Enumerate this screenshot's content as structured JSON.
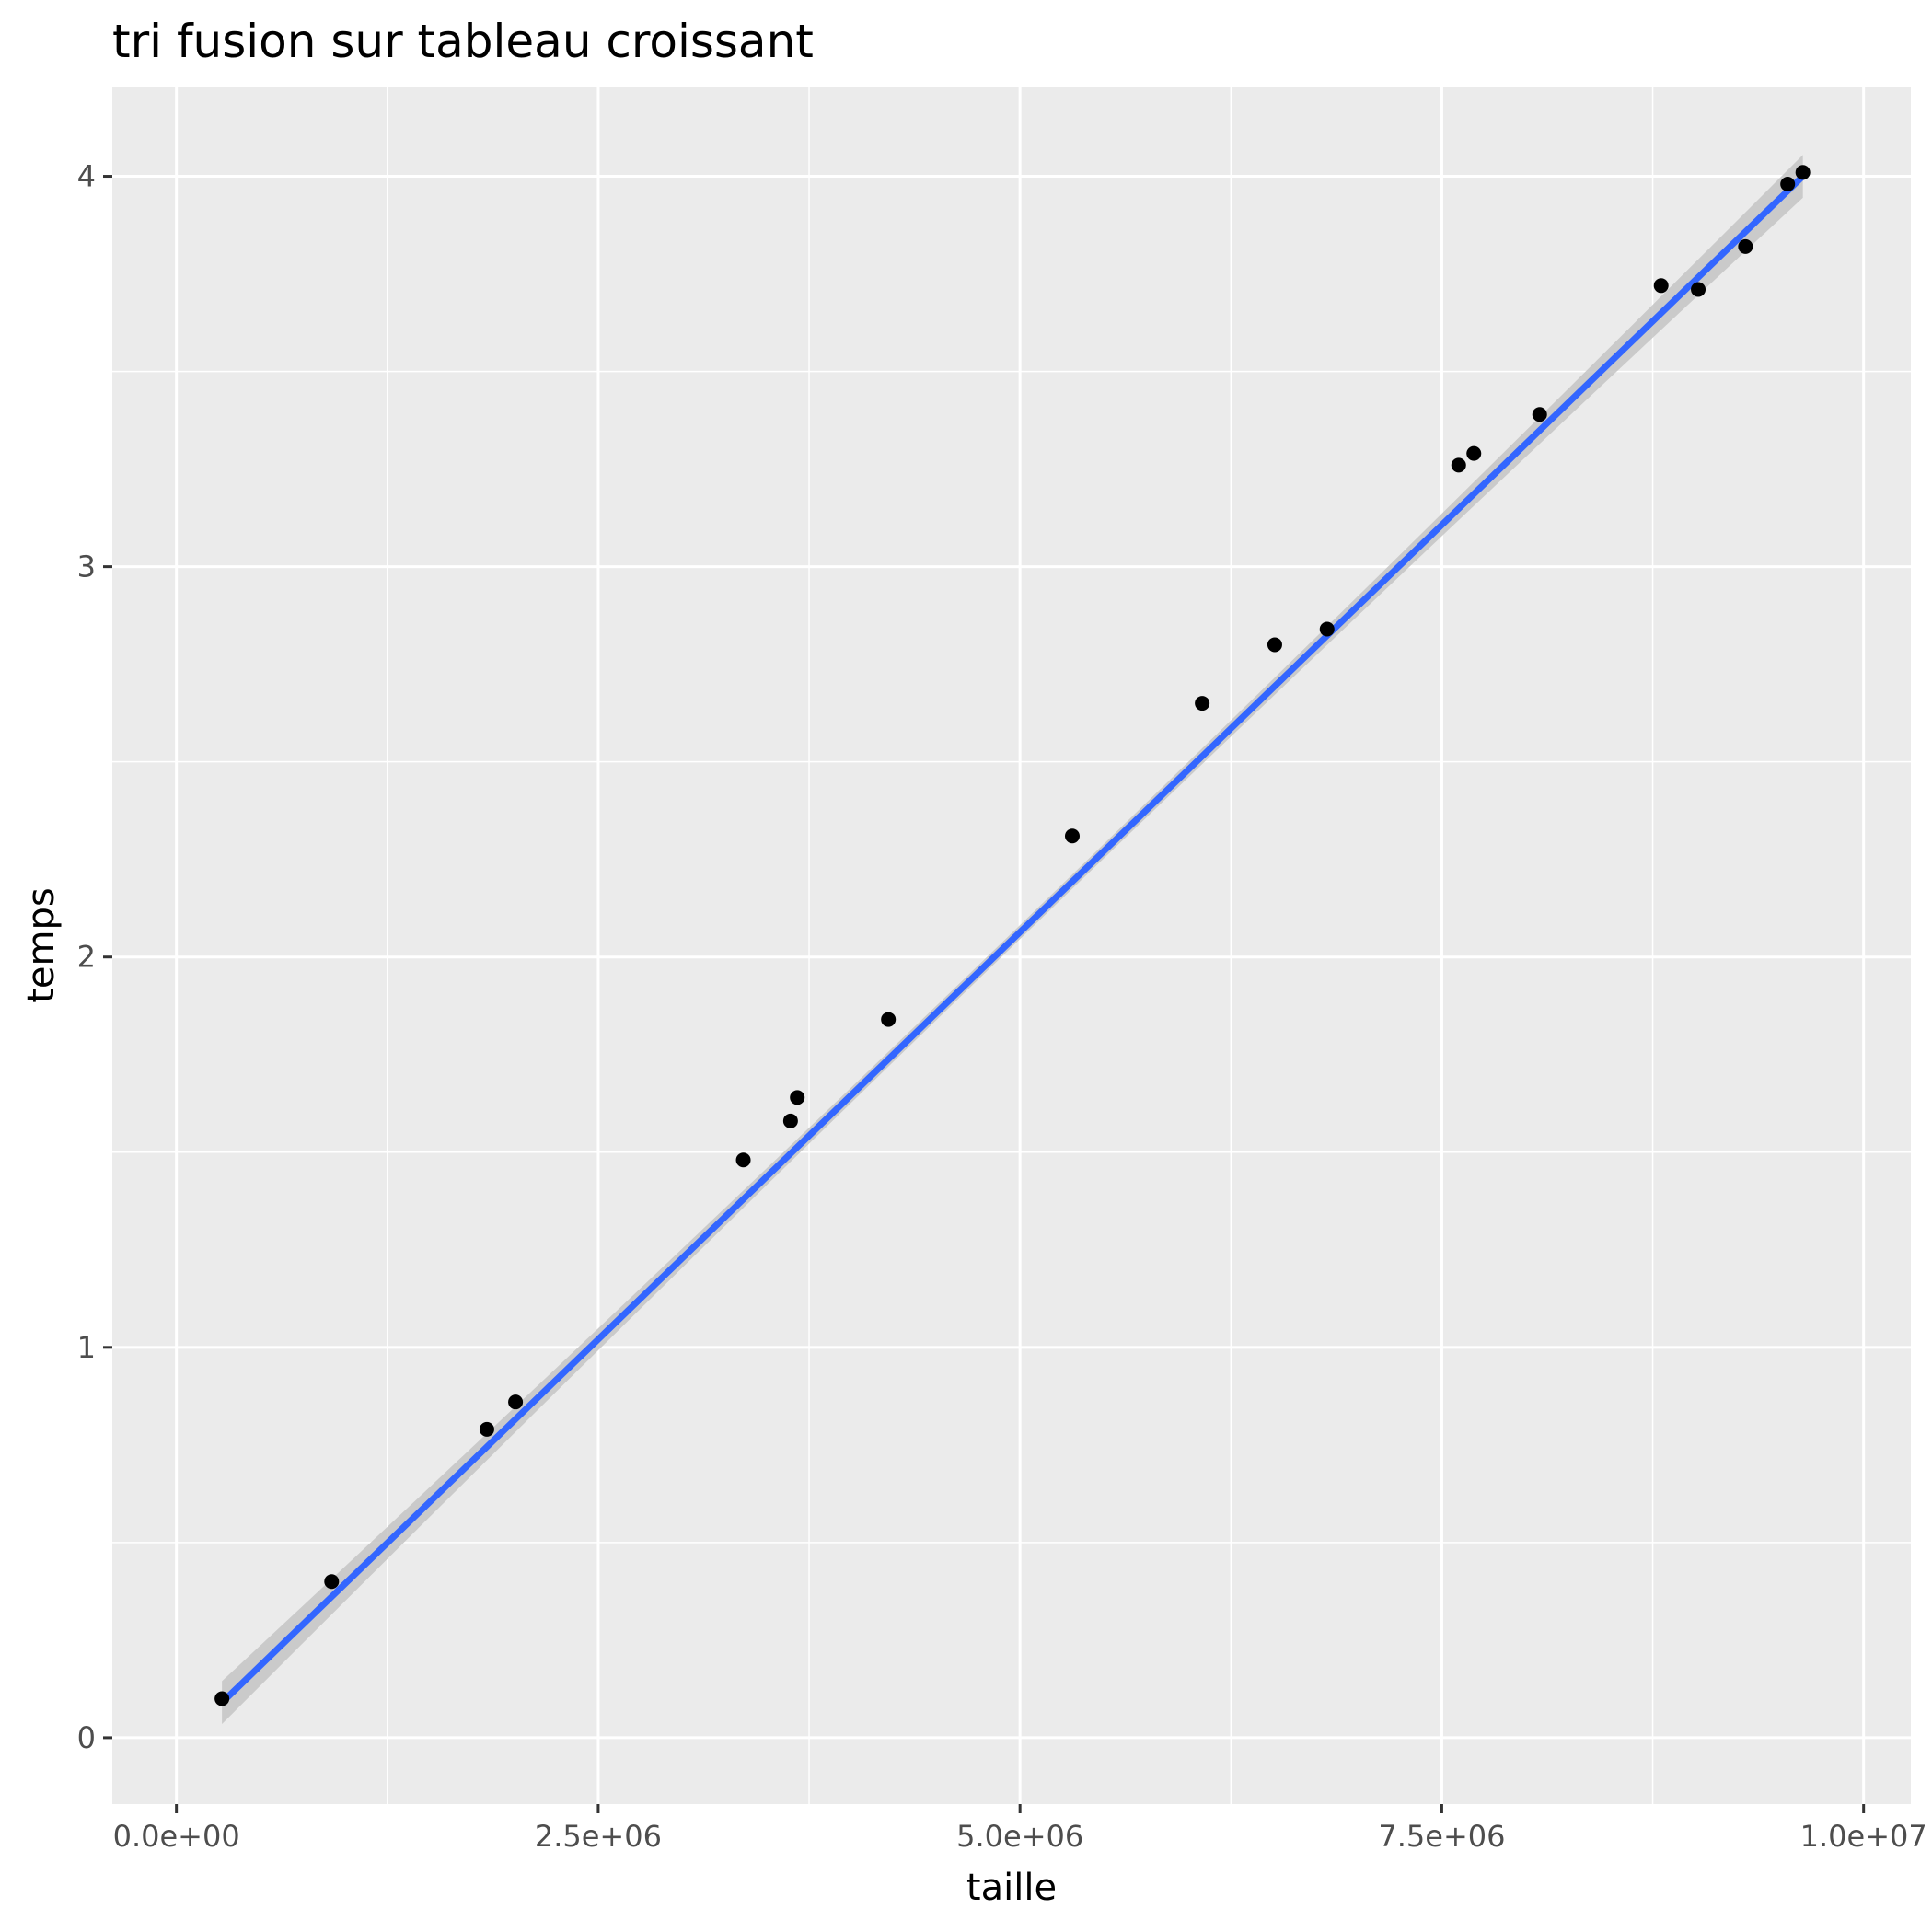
{
  "chart_data": {
    "type": "scatter",
    "title": "tri fusion sur tableau croissant",
    "xlabel": "taille",
    "ylabel": "temps",
    "xlim": [
      -380000,
      10280000
    ],
    "ylim": [
      -0.17,
      4.23
    ],
    "x_ticks": [
      {
        "value": 0,
        "label": "0.0e+00"
      },
      {
        "value": 2500000,
        "label": "2.5e+06"
      },
      {
        "value": 5000000,
        "label": "5.0e+06"
      },
      {
        "value": 7500000,
        "label": "7.5e+06"
      },
      {
        "value": 10000000,
        "label": "1.0e+07"
      }
    ],
    "y_ticks": [
      {
        "value": 0,
        "label": "0"
      },
      {
        "value": 1,
        "label": "1"
      },
      {
        "value": 2,
        "label": "2"
      },
      {
        "value": 3,
        "label": "3"
      },
      {
        "value": 4,
        "label": "4"
      }
    ],
    "x_minor": [
      1250000,
      3750000,
      6250000,
      8750000
    ],
    "y_minor": [
      0.5,
      1.5,
      2.5,
      3.5
    ],
    "grid": true,
    "legend": "none",
    "points": [
      {
        "x": 270000,
        "y": 0.1
      },
      {
        "x": 920000,
        "y": 0.4
      },
      {
        "x": 1840000,
        "y": 0.79
      },
      {
        "x": 2010000,
        "y": 0.86
      },
      {
        "x": 3360000,
        "y": 1.48
      },
      {
        "x": 3640000,
        "y": 1.58
      },
      {
        "x": 3680000,
        "y": 1.64
      },
      {
        "x": 4220000,
        "y": 1.84
      },
      {
        "x": 5310000,
        "y": 2.31
      },
      {
        "x": 6080000,
        "y": 2.65
      },
      {
        "x": 6510000,
        "y": 2.8
      },
      {
        "x": 6820000,
        "y": 2.84
      },
      {
        "x": 7600000,
        "y": 3.26
      },
      {
        "x": 7690000,
        "y": 3.29
      },
      {
        "x": 8080000,
        "y": 3.39
      },
      {
        "x": 8800000,
        "y": 3.72
      },
      {
        "x": 9020000,
        "y": 3.71
      },
      {
        "x": 9300000,
        "y": 3.82
      },
      {
        "x": 9550000,
        "y": 3.98
      },
      {
        "x": 9640000,
        "y": 4.01
      }
    ],
    "fit": {
      "method": "linear",
      "x_start": 270000,
      "x_end": 9640000,
      "y_start": 0.09,
      "y_end": 4.0,
      "se_halfwidth_ends": 0.055,
      "se_halfwidth_mid": 0.018
    },
    "colors": {
      "panel": "#ebebeb",
      "grid": "#ffffff",
      "point": "#000000",
      "line": "#3366ff",
      "ribbon": "#c4c4c4"
    }
  }
}
